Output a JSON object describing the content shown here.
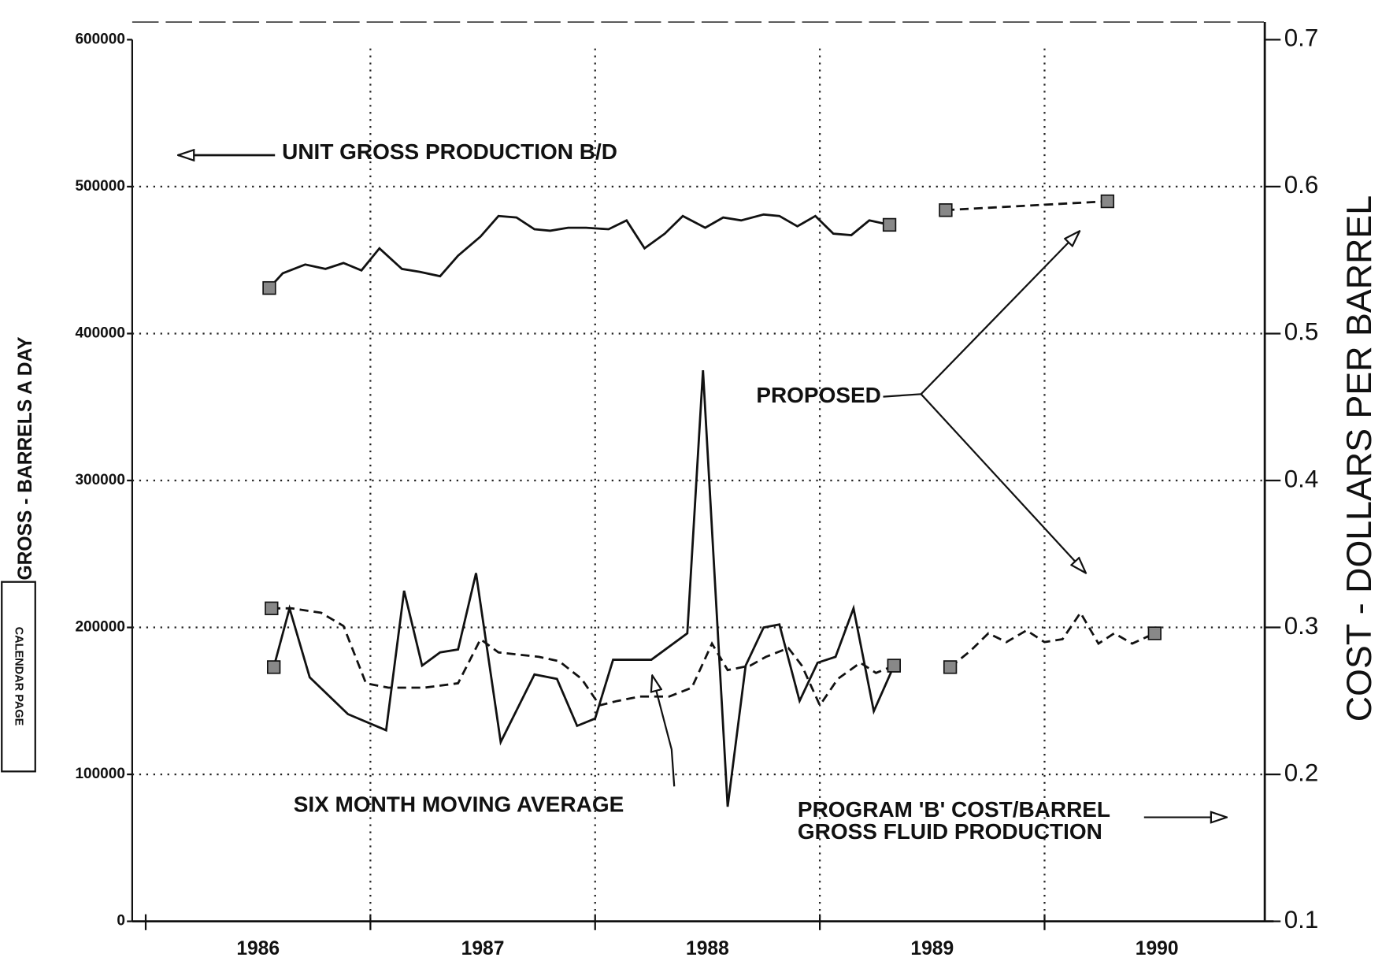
{
  "chart_data": {
    "type": "line",
    "y_label": "GROSS - BARRELS A DAY",
    "y2_label": "COST - DOLLARS PER BARREL",
    "side_note": "CALENDAR PAGE",
    "annotations": [
      "UNIT GROSS PRODUCTION B/D",
      "PROPOSED",
      "SIX MONTH MOVING AVERAGE",
      "PROGRAM 'B' COST/BARREL",
      "GROSS FLUID PRODUCTION"
    ],
    "xlim": [
      1985.94,
      1990.98
    ],
    "xticks": [
      1986,
      1987,
      1988,
      1989,
      1990
    ],
    "ylim": [
      0,
      600000
    ],
    "yticks": [
      0,
      100000,
      200000,
      300000,
      400000,
      500000,
      600000
    ],
    "y2lim": [
      0.1,
      0.7
    ],
    "y2ticks": [
      0.1,
      0.2,
      0.3,
      0.4,
      0.5,
      0.6,
      0.7
    ],
    "grid": true,
    "series": [
      {
        "color": "#111111",
        "dashed": false,
        "x": [
          1986.55,
          1986.61,
          1986.71,
          1986.8,
          1986.88,
          1986.96,
          1987.04,
          1987.14,
          1987.22,
          1987.31,
          1987.39,
          1987.49,
          1987.57,
          1987.65,
          1987.73,
          1987.8,
          1987.88,
          1987.96,
          1988.06,
          1988.14,
          1988.22,
          1988.31,
          1988.39,
          1988.49,
          1988.57,
          1988.65,
          1988.75,
          1988.82,
          1988.9,
          1988.98,
          1989.06,
          1989.14,
          1989.22,
          1989.31
        ],
        "values": [
          431000,
          441000,
          447000,
          444000,
          448000,
          443000,
          458000,
          444000,
          442000,
          439000,
          453000,
          466000,
          480000,
          479000,
          471000,
          470000,
          472000,
          472000,
          471000,
          477000,
          458000,
          468000,
          480000,
          472000,
          479000,
          477000,
          481000,
          480000,
          473000,
          480000,
          468000,
          467000,
          477000,
          474000
        ]
      },
      {
        "color": "#111111",
        "dashed": true,
        "x": [
          1989.56,
          1990.28
        ],
        "values": [
          484000,
          490000
        ]
      },
      {
        "color": "#111111",
        "dashed": false,
        "axis": "y2",
        "x": [
          1986.57,
          1986.64,
          1986.73,
          1986.9,
          1987.07,
          1987.15,
          1987.23,
          1987.31,
          1987.39,
          1987.47,
          1987.58,
          1987.73,
          1987.83,
          1987.92,
          1988.0,
          1988.08,
          1988.25,
          1988.41,
          1988.48,
          1988.59,
          1988.67,
          1988.75,
          1988.82,
          1988.91,
          1988.99,
          1989.07,
          1989.15,
          1989.24,
          1989.33
        ],
        "values": [
          0.273,
          0.313,
          0.266,
          0.241,
          0.23,
          0.325,
          0.274,
          0.283,
          0.285,
          0.337,
          0.222,
          0.268,
          0.265,
          0.233,
          0.238,
          0.278,
          0.278,
          0.296,
          0.475,
          0.178,
          0.274,
          0.3,
          0.302,
          0.25,
          0.276,
          0.28,
          0.313,
          0.243,
          0.274
        ]
      },
      {
        "color": "#111111",
        "dashed": true,
        "axis": "y2",
        "x": [
          1986.56,
          1986.65,
          1986.78,
          1986.88,
          1986.98,
          1987.08,
          1987.24,
          1987.39,
          1987.49,
          1987.57,
          1987.75,
          1987.84,
          1987.94,
          1988.02,
          1988.1,
          1988.2,
          1988.33,
          1988.43,
          1988.52,
          1988.59,
          1988.69,
          1988.76,
          1988.86,
          1988.92,
          1989.0,
          1989.08,
          1989.18,
          1989.25,
          1989.33
        ],
        "values": [
          0.313,
          0.313,
          0.31,
          0.301,
          0.262,
          0.259,
          0.259,
          0.262,
          0.292,
          0.283,
          0.28,
          0.277,
          0.265,
          0.247,
          0.25,
          0.253,
          0.253,
          0.259,
          0.289,
          0.271,
          0.274,
          0.28,
          0.286,
          0.274,
          0.247,
          0.265,
          0.276,
          0.269,
          0.274
        ]
      },
      {
        "color": "#111111",
        "dashed": true,
        "axis": "y2",
        "x": [
          1989.58,
          1989.67,
          1989.75,
          1989.83,
          1989.92,
          1990.0,
          1990.08,
          1990.16,
          1990.24,
          1990.31,
          1990.39,
          1990.49
        ],
        "values": [
          0.273,
          0.284,
          0.296,
          0.29,
          0.298,
          0.29,
          0.292,
          0.31,
          0.289,
          0.296,
          0.289,
          0.296
        ]
      }
    ]
  }
}
